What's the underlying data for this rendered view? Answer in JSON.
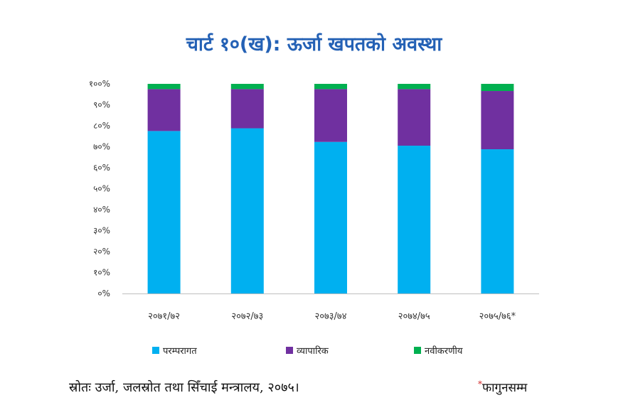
{
  "chart_data": {
    "type": "bar",
    "stacked": true,
    "title": "चार्ट १०(ख): ऊर्जा खपतको अवस्था",
    "categories": [
      "२०७१/७२",
      "२०७२/७३",
      "२०७३/७४",
      "२०७४/७५",
      "२०७५/७६*"
    ],
    "y_tick_labels": [
      "०%",
      "१०%",
      "२०%",
      "३०%",
      "४०%",
      "५०%",
      "६०%",
      "७०%",
      "८०%",
      "९०%",
      "१००%"
    ],
    "ylim": [
      0,
      100
    ],
    "grid": false,
    "legend_position": "bottom",
    "series": [
      {
        "name": "परम्परागत",
        "color": "#00b0f0",
        "values": [
          77.5,
          78.8,
          72.3,
          70.5,
          68.8
        ]
      },
      {
        "name": "व्यापारिक",
        "color": "#7030a0",
        "values": [
          20.0,
          18.7,
          25.2,
          27.0,
          27.8
        ]
      },
      {
        "name": "नवीकरणीय",
        "color": "#00b050",
        "values": [
          2.5,
          2.5,
          2.5,
          2.5,
          3.4
        ]
      }
    ]
  },
  "source_text": "स्रोतः उर्जा, जलस्रोत तथा सिँचाई मन्त्रालय, २०७५।",
  "footnote": {
    "marker": "*",
    "text": "फागुनसम्म"
  }
}
